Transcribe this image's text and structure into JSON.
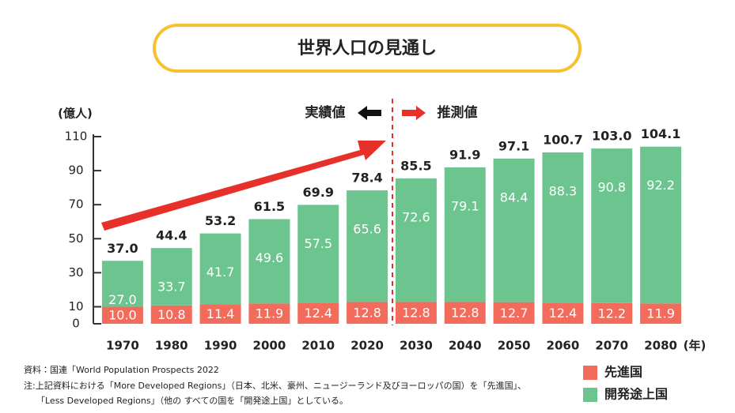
{
  "chart_data": {
    "type": "stacked_bar",
    "title": "世界人口の見通し",
    "y_unit": "(億人)",
    "x_unit": "(年)",
    "annotations": {
      "actual": "実績値",
      "forecast": "推測値"
    },
    "categories": [
      "1970",
      "1980",
      "1990",
      "2000",
      "2010",
      "2020",
      "2030",
      "2040",
      "2050",
      "2060",
      "2070",
      "2080"
    ],
    "series": [
      {
        "name": "先進国",
        "color": "#f26b5b",
        "values": [
          10.0,
          10.8,
          11.4,
          11.9,
          12.4,
          12.8,
          12.8,
          12.8,
          12.7,
          12.4,
          12.2,
          11.9
        ],
        "value_labels": [
          "10.0",
          "10.8",
          "11.4",
          "11.9",
          "12.4",
          "12.8",
          "12.8",
          "12.8",
          "12.7",
          "12.4",
          "12.2",
          "11.9"
        ]
      },
      {
        "name": "開発途上国",
        "color": "#6cc58f",
        "values": [
          27.0,
          33.7,
          41.7,
          49.6,
          57.5,
          65.6,
          72.6,
          79.1,
          84.4,
          88.3,
          90.8,
          92.2
        ],
        "value_labels": [
          "27.0",
          "33.7",
          "41.7",
          "49.6",
          "57.5",
          "65.6",
          "72.6",
          "79.1",
          "84.4",
          "88.3",
          "90.8",
          "92.2"
        ]
      }
    ],
    "totals": [
      37.0,
      44.4,
      53.2,
      61.5,
      69.9,
      78.4,
      85.5,
      91.9,
      97.1,
      100.7,
      103.0,
      104.1
    ],
    "total_labels": [
      "37.0",
      "44.4",
      "53.2",
      "61.5",
      "69.9",
      "78.4",
      "85.5",
      "91.9",
      "97.1",
      "100.7",
      "103.0",
      "104.1"
    ],
    "ylim": [
      0,
      110
    ],
    "yticks": [
      0,
      10,
      30,
      50,
      70,
      90,
      110
    ],
    "notes": [
      "資料：国連「World Population Prospects 2022",
      "注:上記資料における「More Developed Regions」（日本、北米、豪州、ニュージーランド及びヨーロッパの国）を「先進国」、",
      "「Less Developed Regions」（他の すべての国を「開発途上国」としている。"
    ]
  }
}
